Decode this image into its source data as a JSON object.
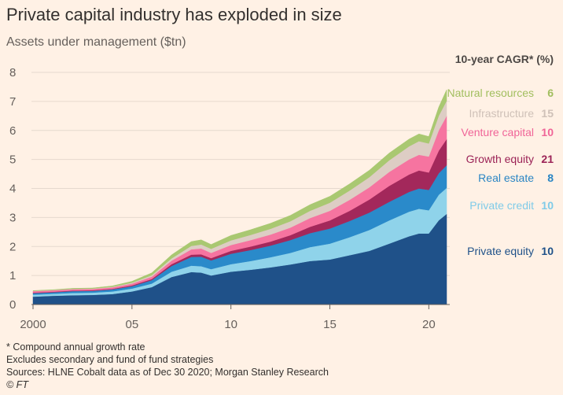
{
  "chart_data": {
    "type": "area",
    "stacked": true,
    "title": "Private capital industry has exploded in size",
    "subtitle": "Assets under management ($tn)",
    "ylim": [
      0,
      8
    ],
    "xlim": [
      2000,
      2020.9
    ],
    "y_ticks": [
      0,
      1,
      2,
      3,
      4,
      5,
      6,
      7,
      8
    ],
    "x_ticks": [
      {
        "value": 2000,
        "label": "2000"
      },
      {
        "value": 2005,
        "label": "05"
      },
      {
        "value": 2010,
        "label": "10"
      },
      {
        "value": 2015,
        "label": "15"
      },
      {
        "value": 2020,
        "label": "20"
      }
    ],
    "grid": true,
    "legend_header": "10-year CAGR* (%)",
    "x": [
      2000,
      2001,
      2002,
      2003,
      2004,
      2005,
      2006,
      2007,
      2008,
      2008.5,
      2009,
      2010,
      2011,
      2012,
      2013,
      2014,
      2015,
      2016,
      2017,
      2018,
      2019,
      2019.5,
      2020,
      2020.5,
      2020.9
    ],
    "series": [
      {
        "name": "Private equity",
        "cagr": "10",
        "color": "#1F5189",
        "values": [
          0.27,
          0.3,
          0.32,
          0.33,
          0.36,
          0.45,
          0.6,
          0.95,
          1.12,
          1.1,
          1.0,
          1.13,
          1.2,
          1.28,
          1.38,
          1.5,
          1.55,
          1.7,
          1.85,
          2.1,
          2.35,
          2.45,
          2.45,
          2.9,
          3.12
        ]
      },
      {
        "name": "Private credit",
        "cagr": "10",
        "color": "#8FD3EA",
        "values": [
          0.07,
          0.07,
          0.08,
          0.08,
          0.09,
          0.1,
          0.12,
          0.18,
          0.22,
          0.22,
          0.22,
          0.26,
          0.3,
          0.35,
          0.4,
          0.48,
          0.55,
          0.62,
          0.72,
          0.8,
          0.85,
          0.85,
          0.8,
          0.88,
          0.9
        ]
      },
      {
        "name": "Real estate",
        "cagr": "8",
        "color": "#2A8ACA",
        "values": [
          0.05,
          0.05,
          0.06,
          0.06,
          0.07,
          0.08,
          0.12,
          0.2,
          0.3,
          0.33,
          0.3,
          0.36,
          0.38,
          0.4,
          0.44,
          0.48,
          0.52,
          0.56,
          0.6,
          0.64,
          0.68,
          0.7,
          0.7,
          0.74,
          0.78
        ]
      },
      {
        "name": "Growth equity",
        "cagr": "21",
        "color": "#A3285B",
        "values": [
          0.02,
          0.02,
          0.02,
          0.02,
          0.02,
          0.03,
          0.04,
          0.06,
          0.08,
          0.08,
          0.08,
          0.1,
          0.12,
          0.14,
          0.17,
          0.22,
          0.28,
          0.35,
          0.45,
          0.55,
          0.6,
          0.62,
          0.6,
          0.78,
          0.9
        ]
      },
      {
        "name": "Venture capital",
        "cagr": "10",
        "color": "#F674A0",
        "values": [
          0.05,
          0.05,
          0.05,
          0.05,
          0.05,
          0.06,
          0.08,
          0.12,
          0.18,
          0.2,
          0.18,
          0.2,
          0.22,
          0.24,
          0.26,
          0.3,
          0.33,
          0.38,
          0.42,
          0.48,
          0.52,
          0.54,
          0.55,
          0.7,
          0.8
        ]
      },
      {
        "name": "Infrastructure",
        "cagr": "15",
        "color": "#DDCDC4",
        "values": [
          0.01,
          0.01,
          0.01,
          0.01,
          0.02,
          0.03,
          0.05,
          0.08,
          0.12,
          0.14,
          0.14,
          0.16,
          0.18,
          0.2,
          0.22,
          0.25,
          0.28,
          0.32,
          0.35,
          0.4,
          0.45,
          0.47,
          0.45,
          0.5,
          0.52
        ]
      },
      {
        "name": "Natural resources",
        "cagr": "6",
        "color": "#A9C871",
        "values": [
          0.01,
          0.01,
          0.02,
          0.02,
          0.03,
          0.05,
          0.08,
          0.12,
          0.15,
          0.16,
          0.15,
          0.17,
          0.18,
          0.19,
          0.2,
          0.21,
          0.22,
          0.23,
          0.24,
          0.25,
          0.25,
          0.25,
          0.24,
          0.3,
          0.38
        ]
      }
    ],
    "legend_placement": "right"
  },
  "footnotes": {
    "cagr": "* Compound annual growth rate",
    "excludes": "Excludes secondary and fund of fund strategies",
    "sources": "Sources: HLNE Cobalt data as of Dec 30 2020; Morgan Stanley Research",
    "credit": "© FT"
  }
}
